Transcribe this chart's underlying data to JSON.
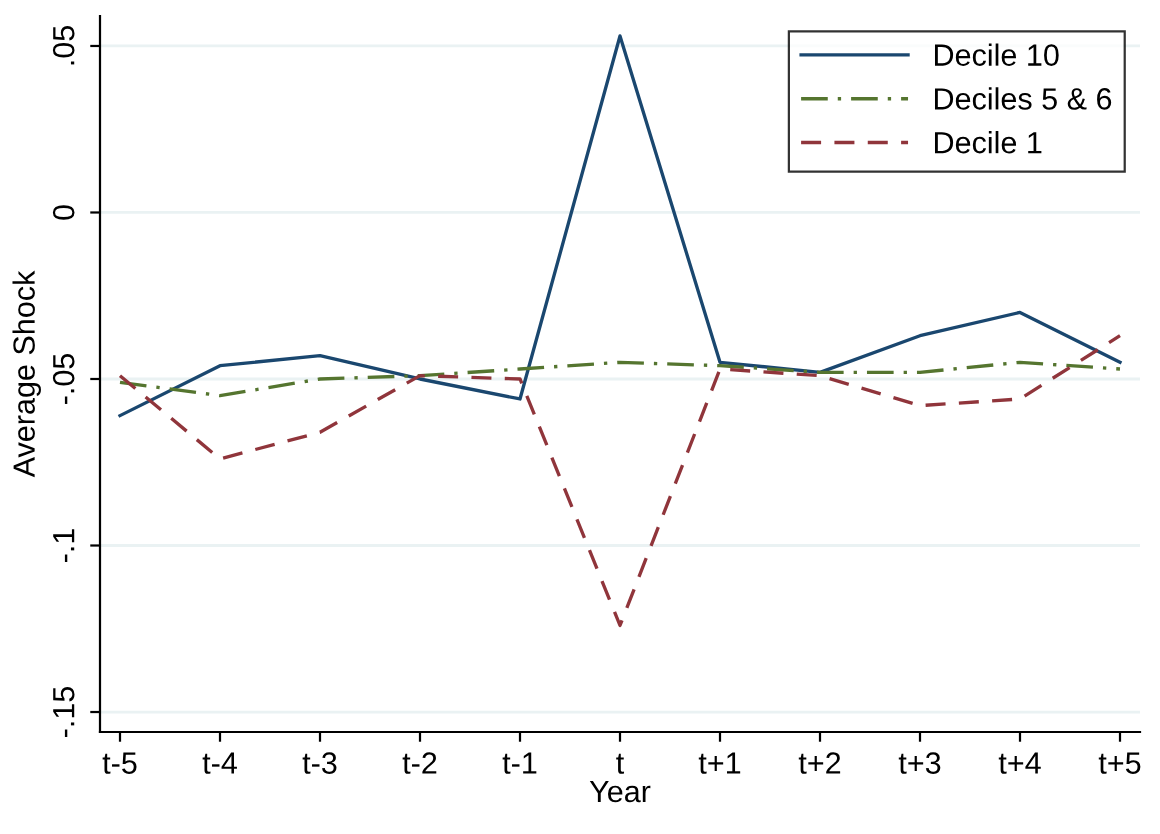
{
  "chart_data": {
    "type": "line",
    "xlabel": "Year",
    "ylabel": "Average Shock",
    "categories": [
      "t-5",
      "t-4",
      "t-3",
      "t-2",
      "t-1",
      "t",
      "t+1",
      "t+2",
      "t+3",
      "t+4",
      "t+5"
    ],
    "series": [
      {
        "name": "Decile 10",
        "color": "#1a476f",
        "line_style": "solid",
        "values": [
          -0.061,
          -0.046,
          -0.043,
          -0.05,
          -0.056,
          0.053,
          -0.045,
          -0.048,
          -0.037,
          -0.03,
          -0.045
        ]
      },
      {
        "name": "Deciles 5 & 6",
        "color": "#55752f",
        "line_style": "dashdot",
        "values": [
          -0.051,
          -0.055,
          -0.05,
          -0.049,
          -0.047,
          -0.045,
          -0.046,
          -0.048,
          -0.048,
          -0.045,
          -0.047
        ]
      },
      {
        "name": "Decile 1",
        "color": "#90353b",
        "line_style": "dashed",
        "values": [
          -0.049,
          -0.074,
          -0.066,
          -0.049,
          -0.05,
          -0.124,
          -0.047,
          -0.049,
          -0.058,
          -0.056,
          -0.037
        ]
      }
    ],
    "ylim": [
      -0.156,
      0.059
    ],
    "yticks": [
      {
        "value": -0.15,
        "label": "-.15"
      },
      {
        "value": -0.1,
        "label": "-.1"
      },
      {
        "value": -0.05,
        "label": "-.05"
      },
      {
        "value": 0,
        "label": "0"
      },
      {
        "value": 0.05,
        "label": ".05"
      }
    ],
    "grid": "y",
    "legend": "top right",
    "marker": "none"
  }
}
